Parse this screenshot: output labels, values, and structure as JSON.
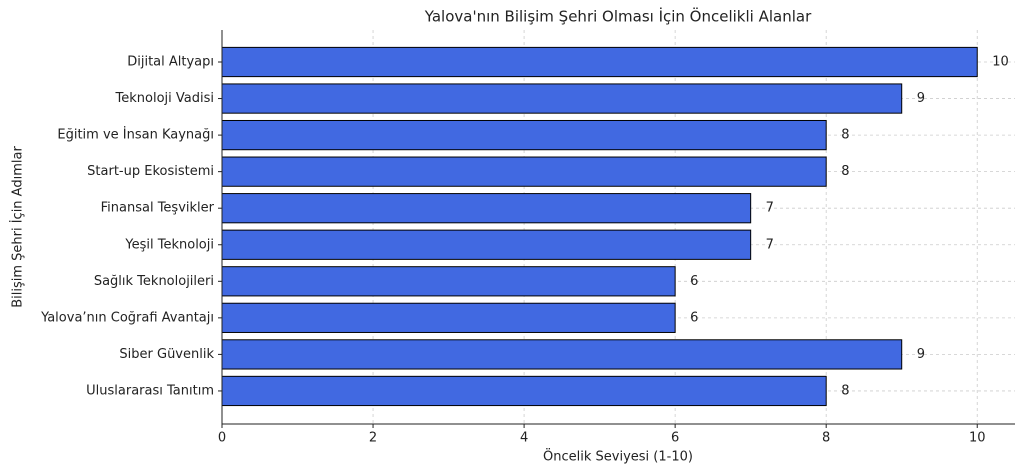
{
  "chart_data": {
    "type": "barh",
    "title": "Yalova'nın Bilişim Şehri Olması İçin Öncelikli Alanlar",
    "xlabel": "Öncelik Seviyesi (1-10)",
    "ylabel": "Bilişim Şehri İçin Adımlar",
    "categories": [
      "Dijital Altyapı",
      "Teknoloji Vadisi",
      "Eğitim ve İnsan Kaynağı",
      "Start-up Ekosistemi",
      "Finansal Teşvikler",
      "Yeşil Teknoloji",
      "Sağlık Teknolojileri",
      "Yalova’nın Coğrafi Avantajı",
      "Siber Güvenlik",
      "Uluslararası Tanıtım"
    ],
    "values": [
      10,
      9,
      8,
      8,
      7,
      7,
      6,
      6,
      9,
      8
    ],
    "color": "#4169e1",
    "xlim": [
      0,
      10.5
    ],
    "xticks": [
      0,
      2,
      4,
      6,
      8,
      10
    ],
    "grid": true
  }
}
